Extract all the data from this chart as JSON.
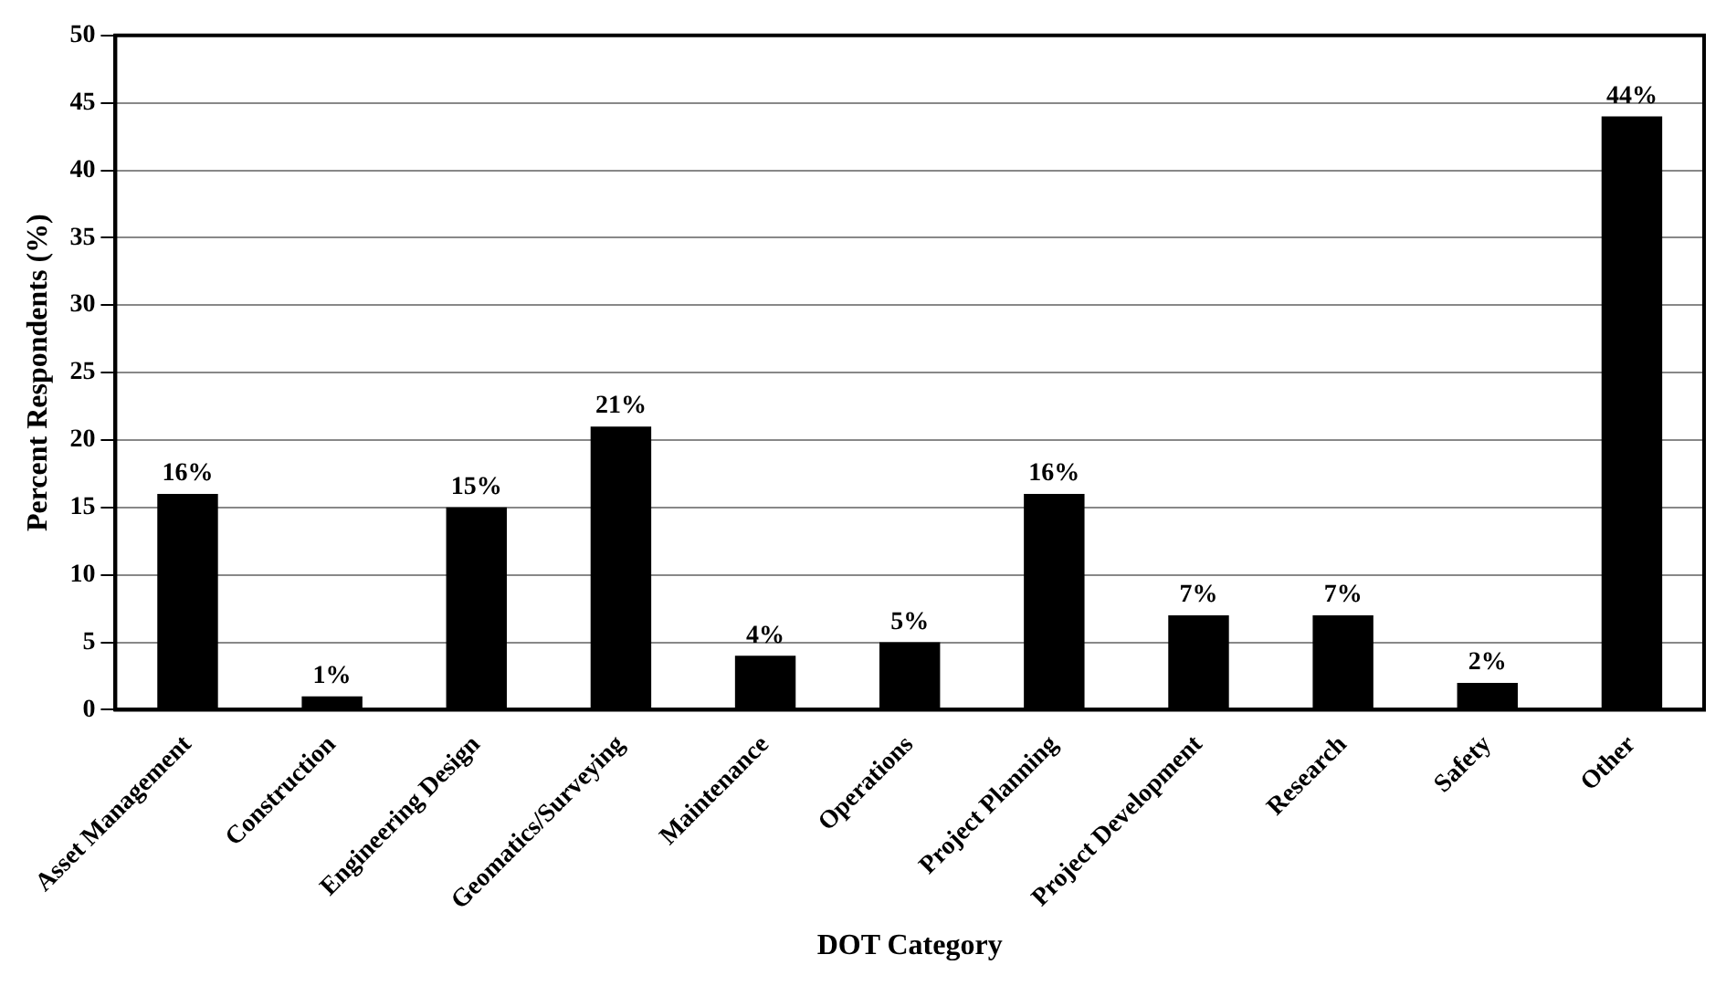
{
  "chart_data": {
    "type": "bar",
    "xlabel": "DOT Category",
    "ylabel": "Percent Respondents (%)",
    "categories": [
      "Asset Management",
      "Construction",
      "Engineering Design",
      "Geomatics/Surveying",
      "Maintenance",
      "Operations",
      "Project Planning",
      "Project Development",
      "Research",
      "Safety",
      "Other"
    ],
    "values": [
      16,
      1,
      15,
      21,
      4,
      5,
      16,
      7,
      7,
      2,
      44
    ],
    "value_labels": [
      "16%",
      "1%",
      "15%",
      "21%",
      "4%",
      "5%",
      "16%",
      "7%",
      "7%",
      "2%",
      "44%"
    ],
    "color": "#000000",
    "ylim": [
      0,
      50
    ],
    "yticks": [
      0,
      5,
      10,
      15,
      20,
      25,
      30,
      35,
      40,
      45,
      50
    ],
    "grid": "y"
  }
}
